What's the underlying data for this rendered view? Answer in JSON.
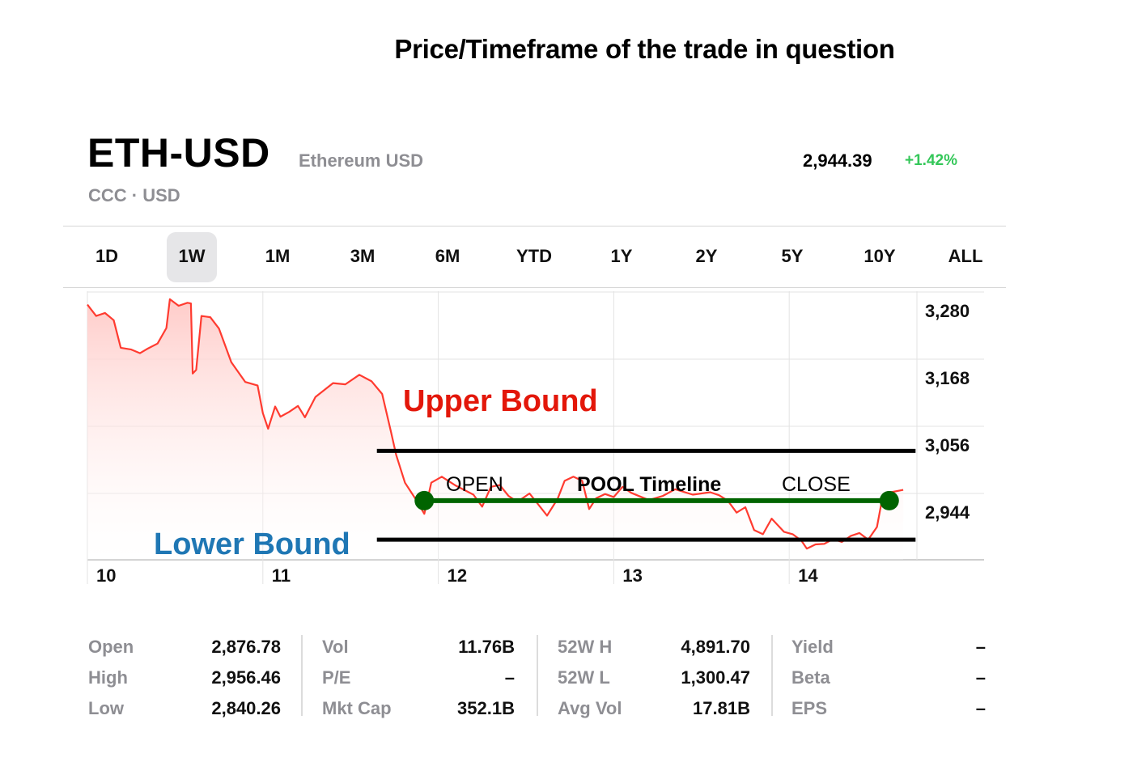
{
  "caption": "Price/Timeframe of the trade in question",
  "quote": {
    "symbol": "ETH-USD",
    "name": "Ethereum USD",
    "exchange": "CCC · USD",
    "price": "2,944.39",
    "change": "+1.42%"
  },
  "ranges": [
    "1D",
    "1W",
    "1M",
    "3M",
    "6M",
    "YTD",
    "1Y",
    "2Y",
    "5Y",
    "10Y",
    "ALL"
  ],
  "active_range": "1W",
  "colors": {
    "line": "#ff3b30",
    "area_top": "#ffc9c6",
    "positive": "#34c759",
    "pool_line": "#006400",
    "upper_label": "#e3170a",
    "lower_label": "#1f77b4"
  },
  "annotations": {
    "upper_bound_label": "Upper Bound",
    "lower_bound_label": "Lower Bound",
    "open_label": "OPEN",
    "timeline_label": "POOL Timeline",
    "close_label": "CLOSE"
  },
  "chart_data": {
    "type": "line",
    "x_label_values": [
      "10",
      "11",
      "12",
      "13",
      "14"
    ],
    "y_tick_labels": [
      "3,280",
      "3,168",
      "3,056",
      "2,944"
    ],
    "yticks": [
      3280,
      3168,
      3056,
      2944
    ],
    "ylim": [
      2832,
      3305
    ],
    "xlim": [
      10.0,
      14.9
    ],
    "grid": true,
    "series": [
      {
        "points": [
          [
            10.0,
            3259
          ],
          [
            10.05,
            3240
          ],
          [
            10.1,
            3245
          ],
          [
            10.15,
            3233
          ],
          [
            10.19,
            3187
          ],
          [
            10.25,
            3184
          ],
          [
            10.3,
            3178
          ],
          [
            10.34,
            3185
          ],
          [
            10.4,
            3194
          ],
          [
            10.45,
            3220
          ],
          [
            10.47,
            3268
          ],
          [
            10.52,
            3257
          ],
          [
            10.57,
            3262
          ],
          [
            10.59,
            3261
          ],
          [
            10.6,
            3144
          ],
          [
            10.62,
            3150
          ],
          [
            10.65,
            3240
          ],
          [
            10.7,
            3238
          ],
          [
            10.75,
            3219
          ],
          [
            10.82,
            3163
          ],
          [
            10.9,
            3130
          ],
          [
            10.97,
            3124
          ],
          [
            11.0,
            3078
          ],
          [
            11.03,
            3052
          ],
          [
            11.07,
            3089
          ],
          [
            11.1,
            3072
          ],
          [
            11.15,
            3080
          ],
          [
            11.2,
            3090
          ],
          [
            11.24,
            3071
          ],
          [
            11.3,
            3105
          ],
          [
            11.4,
            3128
          ],
          [
            11.47,
            3126
          ],
          [
            11.55,
            3142
          ],
          [
            11.62,
            3131
          ],
          [
            11.68,
            3110
          ],
          [
            11.73,
            3047
          ],
          [
            11.76,
            3008
          ],
          [
            11.81,
            2962
          ],
          [
            11.87,
            2935
          ],
          [
            11.92,
            2910
          ],
          [
            11.96,
            2962
          ],
          [
            12.02,
            2972
          ],
          [
            12.1,
            2957
          ],
          [
            12.2,
            2942
          ],
          [
            12.25,
            2922
          ],
          [
            12.3,
            2955
          ],
          [
            12.35,
            2958
          ],
          [
            12.4,
            2940
          ],
          [
            12.45,
            2930
          ],
          [
            12.52,
            2944
          ],
          [
            12.62,
            2907
          ],
          [
            12.68,
            2935
          ],
          [
            12.72,
            2965
          ],
          [
            12.77,
            2972
          ],
          [
            12.82,
            2965
          ],
          [
            12.86,
            2918
          ],
          [
            12.9,
            2936
          ],
          [
            12.95,
            2943
          ],
          [
            13.0,
            2938
          ],
          [
            13.05,
            2955
          ],
          [
            13.1,
            2945
          ],
          [
            13.2,
            2933
          ],
          [
            13.28,
            2940
          ],
          [
            13.35,
            2951
          ],
          [
            13.45,
            2942
          ],
          [
            13.55,
            2946
          ],
          [
            13.6,
            2941
          ],
          [
            13.65,
            2932
          ],
          [
            13.7,
            2912
          ],
          [
            13.75,
            2921
          ],
          [
            13.8,
            2883
          ],
          [
            13.85,
            2876
          ],
          [
            13.9,
            2902
          ],
          [
            13.97,
            2880
          ],
          [
            14.02,
            2876
          ],
          [
            14.07,
            2865
          ],
          [
            14.1,
            2852
          ],
          [
            14.15,
            2859
          ],
          [
            14.2,
            2860
          ],
          [
            14.25,
            2868
          ],
          [
            14.3,
            2863
          ],
          [
            14.35,
            2873
          ],
          [
            14.4,
            2878
          ],
          [
            14.45,
            2867
          ],
          [
            14.5,
            2888
          ],
          [
            14.53,
            2935
          ],
          [
            14.58,
            2946
          ],
          [
            14.65,
            2950
          ]
        ]
      }
    ]
  },
  "trade": {
    "upper_bound": 3015,
    "lower_bound": 2867,
    "timeline_price": 2932,
    "open_x": 11.92,
    "close_x": 14.57,
    "bounds_x": [
      11.65,
      14.72
    ]
  },
  "stats": [
    [
      {
        "label": "Open",
        "value": "2,876.78"
      },
      {
        "label": "High",
        "value": "2,956.46"
      },
      {
        "label": "Low",
        "value": "2,840.26"
      }
    ],
    [
      {
        "label": "Vol",
        "value": "11.76B"
      },
      {
        "label": "P/E",
        "value": "–"
      },
      {
        "label": "Mkt Cap",
        "value": "352.1B"
      }
    ],
    [
      {
        "label": "52W H",
        "value": "4,891.70"
      },
      {
        "label": "52W L",
        "value": "1,300.47"
      },
      {
        "label": "Avg Vol",
        "value": "17.81B"
      }
    ],
    [
      {
        "label": "Yield",
        "value": "–"
      },
      {
        "label": "Beta",
        "value": "–"
      },
      {
        "label": "EPS",
        "value": "–"
      }
    ]
  ]
}
